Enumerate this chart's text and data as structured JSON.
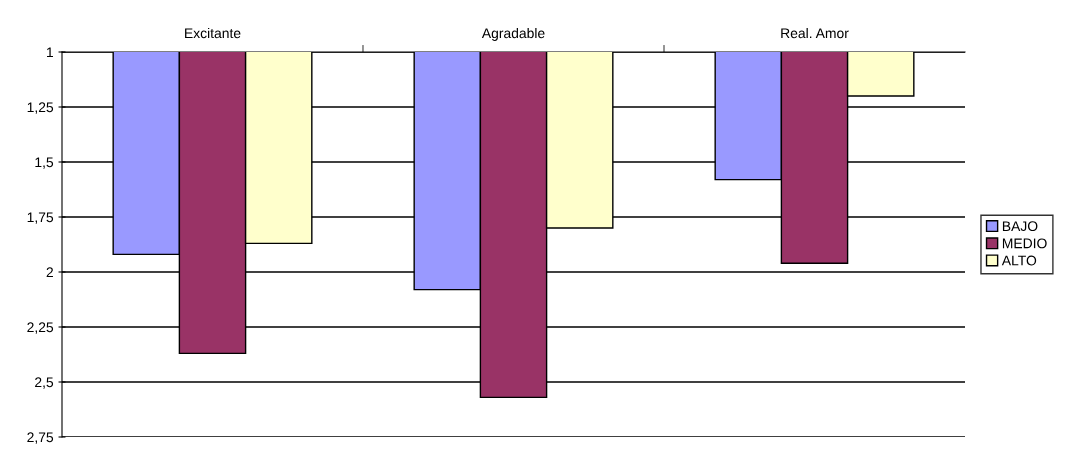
{
  "chart_data": {
    "type": "bar",
    "categories": [
      "Excitante",
      "Agradable",
      "Real. Amor"
    ],
    "series": [
      {
        "name": "BAJO",
        "color": "#9999ff",
        "values": [
          1.92,
          2.08,
          1.58
        ]
      },
      {
        "name": "MEDIO",
        "color": "#993366",
        "values": [
          2.37,
          2.57,
          1.96
        ]
      },
      {
        "name": "ALTO",
        "color": "#ffffcc",
        "values": [
          1.87,
          1.8,
          1.2
        ]
      }
    ],
    "ylim": [
      2.75,
      1
    ],
    "yticks": [
      1,
      {
        "value": 1.25,
        "label": "1,25"
      },
      {
        "value": 1.5,
        "label": "1,5"
      },
      {
        "value": 1.75,
        "label": "1,75"
      },
      2,
      {
        "value": 2.25,
        "label": "2,25"
      },
      {
        "value": 2.5,
        "label": "2,5"
      },
      {
        "value": 2.75,
        "label": "2,75"
      }
    ],
    "grid": "y",
    "legend": "right"
  }
}
